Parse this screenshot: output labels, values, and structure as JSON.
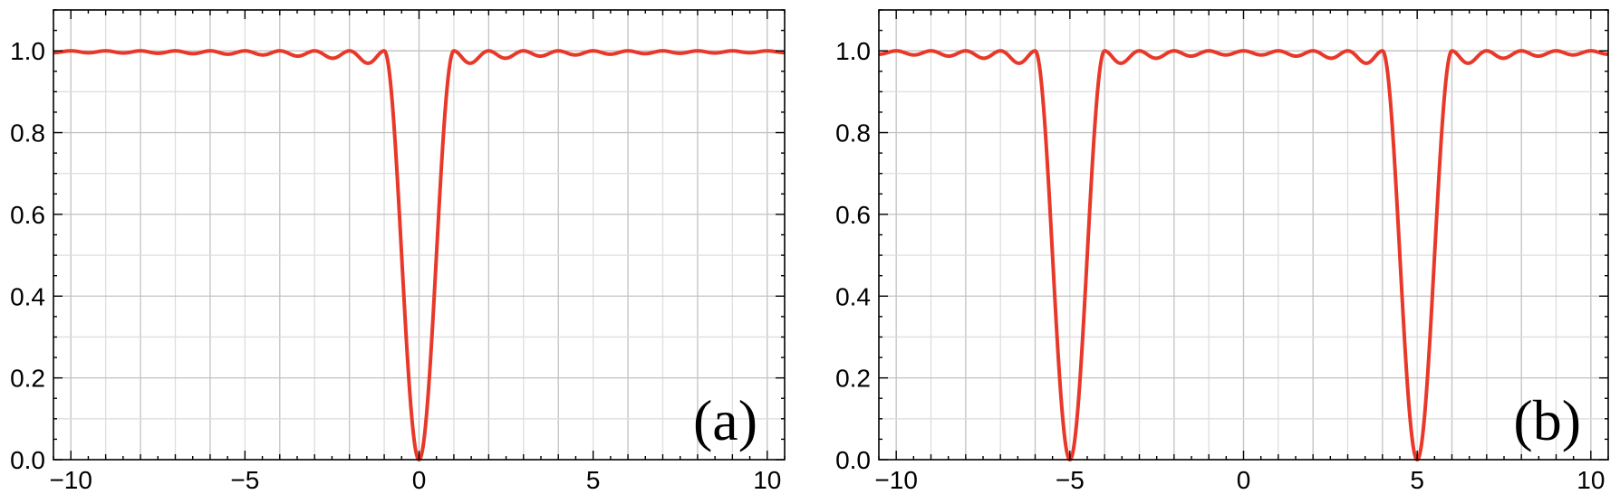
{
  "chart_data": [
    {
      "type": "line",
      "panel_label": "(a)",
      "xlim": [
        -10.5,
        10.5
      ],
      "ylim": [
        0,
        1.1
      ],
      "x_ticks": [
        -10,
        -5,
        0,
        5,
        10
      ],
      "x_tick_labels": [
        "−10",
        "−5",
        "0",
        "5",
        "10"
      ],
      "y_ticks": [
        0,
        0.2,
        0.4,
        0.6,
        0.8,
        1.0
      ],
      "y_tick_labels": [
        "0.0",
        "0.2",
        "0.4",
        "0.6",
        "0.8",
        "1.0"
      ],
      "grid": true,
      "legend": "none",
      "line_color": "#e8382a",
      "dip_centers": [
        0
      ],
      "series": [
        {
          "x": [
            -10.5,
            -3,
            -2.5,
            -2,
            -1.5,
            -1,
            -0.7,
            -0.5,
            -0.3,
            -0.15,
            0,
            0.15,
            0.3,
            0.5,
            0.7,
            1,
            1.5,
            2,
            2.5,
            3,
            10.5
          ],
          "y": [
            1.0,
            0.99,
            0.985,
            1.0,
            0.955,
            1.0,
            0.75,
            0.45,
            0.2,
            0.05,
            0.0,
            0.05,
            0.2,
            0.45,
            0.75,
            1.0,
            0.955,
            1.0,
            0.985,
            0.99,
            1.0
          ]
        }
      ]
    },
    {
      "type": "line",
      "panel_label": "(b)",
      "xlim": [
        -10.5,
        10.5
      ],
      "ylim": [
        0,
        1.1
      ],
      "x_ticks": [
        -10,
        -5,
        0,
        5,
        10
      ],
      "x_tick_labels": [
        "−10",
        "−5",
        "0",
        "5",
        "10"
      ],
      "y_ticks": [
        0,
        0.2,
        0.4,
        0.6,
        0.8,
        1.0
      ],
      "y_tick_labels": [
        "0.0",
        "0.2",
        "0.4",
        "0.6",
        "0.8",
        "1.0"
      ],
      "grid": true,
      "legend": "none",
      "line_color": "#e8382a",
      "dip_centers": [
        -5,
        5
      ],
      "series": [
        {
          "x": [
            -10.5,
            -6.5,
            -6,
            -5.5,
            -5,
            -4.5,
            -4,
            -3.5,
            -1,
            0,
            1,
            3.5,
            4,
            4.5,
            5,
            5.5,
            6,
            6.5,
            10.5
          ],
          "y": [
            1.0,
            0.955,
            1.0,
            0.45,
            0.0,
            0.45,
            1.0,
            0.955,
            0.99,
            1.0,
            0.99,
            0.955,
            1.0,
            0.45,
            0.0,
            0.45,
            1.0,
            0.955,
            1.0
          ]
        }
      ]
    }
  ]
}
